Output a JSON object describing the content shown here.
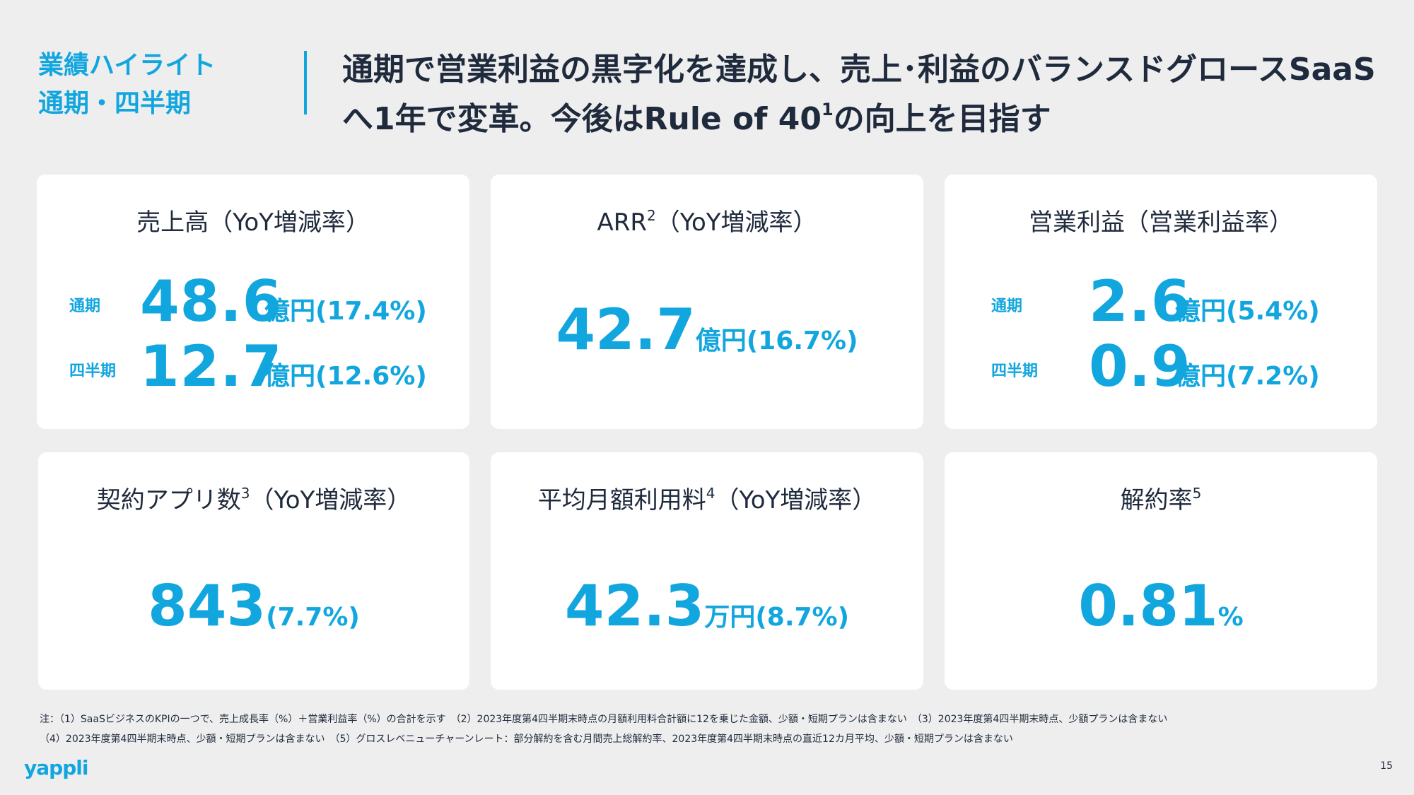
{
  "header": {
    "section_line1": "業績ハイライト",
    "section_line2": "通期・四半期",
    "title_part1": "通期で営業利益の黒字化を達成し、売上･利益のバランスドグロースSaaSへ1年で変革。今後はRule of 40",
    "title_sup": "1",
    "title_part2": "の向上を目指す"
  },
  "cards": {
    "revenue": {
      "title": "売上高（YoY増減率）",
      "full_label": "通期",
      "full_value": "48.6",
      "full_unit": "億円(17.4%)",
      "q_label": "四半期",
      "q_value": "12.7",
      "q_unit": "億円(12.6%)"
    },
    "arr": {
      "title_main": "ARR",
      "title_sup": "2",
      "title_tail": "（YoY増減率）",
      "value": "42.7",
      "unit": "億円(16.7%)"
    },
    "op_income": {
      "title": "営業利益（営業利益率）",
      "full_label": "通期",
      "full_value": "2.6",
      "full_unit": "億円(5.4%)",
      "q_label": "四半期",
      "q_value": "0.9",
      "q_unit": "億円(7.2%)"
    },
    "apps": {
      "title_main": "契約アプリ数",
      "title_sup": "3",
      "title_tail": "（YoY増減率）",
      "value": "843",
      "unit": "(7.7%)"
    },
    "arpu": {
      "title_main": "平均月額利用料",
      "title_sup": "4",
      "title_tail": "（YoY増減率）",
      "value": "42.3",
      "unit": "万円(8.7%)"
    },
    "churn": {
      "title_main": "解約率",
      "title_sup": "5",
      "value": "0.81",
      "unit": "%"
    }
  },
  "notes": {
    "line1": "注：（1）SaaSビジネスのKPIの一つで、売上成長率（%）＋営業利益率（%）の合計を示す　（2）2023年度第4四半期末時点の月額利用料合計額に12を乗じた金額、少額・短期プランは含まない　（3）2023年度第4四半期末時点、少額プランは含まない",
    "line2": "（4）2023年度第4四半期末時点、少額・短期プランは含まない　（5）グロスレベニューチャーンレート：部分解約を含む月間売上総解約率、2023年度第4四半期末時点の直近12カ月平均、少額・短期プランは含まない"
  },
  "footer": {
    "logo": "yappli",
    "page_number": "15"
  },
  "colors": {
    "accent": "#12a6df",
    "background": "#eeeeee",
    "card": "#ffffff",
    "text": "#1f2a3c"
  }
}
